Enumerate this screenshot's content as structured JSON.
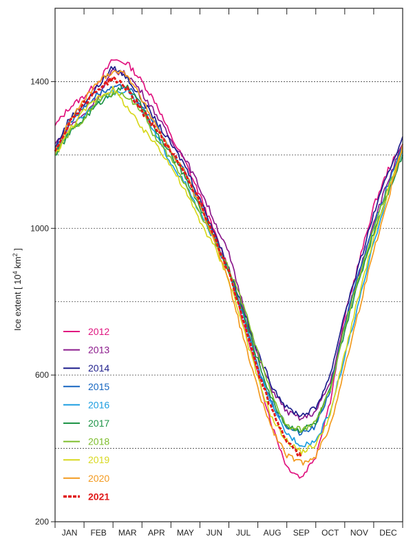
{
  "chart_data": {
    "type": "line",
    "title": "",
    "xlabel": "",
    "ylabel": "Ice extent [ 10",
    "ylabel_sup1": "4",
    "ylabel_mid": " km",
    "ylabel_sup2": "2",
    "ylabel_end": " ]",
    "ylim": [
      200,
      1600
    ],
    "yticks": [
      200,
      600,
      1000,
      1400
    ],
    "grid_lines": [
      400,
      800,
      1200,
      1400,
      1000,
      600
    ],
    "months": [
      "JAN",
      "FEB",
      "MAR",
      "APR",
      "MAY",
      "JUN",
      "JUL",
      "AUG",
      "SEP",
      "OCT",
      "NOV",
      "DEC"
    ],
    "legend_position": "bottom-left",
    "series": [
      {
        "name": "2012",
        "color": "#e0137f",
        "style": "solid",
        "bold": false,
        "values": [
          [
            0,
            1280
          ],
          [
            0.5,
            1330
          ],
          [
            1,
            1360
          ],
          [
            1.5,
            1400
          ],
          [
            2,
            1460
          ],
          [
            2.5,
            1450
          ],
          [
            3,
            1400
          ],
          [
            3.5,
            1340
          ],
          [
            4,
            1250
          ],
          [
            4.5,
            1180
          ],
          [
            5,
            1090
          ],
          [
            5.5,
            990
          ],
          [
            6,
            890
          ],
          [
            6.5,
            740
          ],
          [
            7,
            600
          ],
          [
            7.5,
            460
          ],
          [
            8,
            350
          ],
          [
            8.5,
            320
          ],
          [
            9,
            380
          ],
          [
            9.5,
            530
          ],
          [
            10,
            760
          ],
          [
            10.5,
            910
          ],
          [
            11,
            1060
          ],
          [
            11.5,
            1160
          ],
          [
            12,
            1230
          ]
        ]
      },
      {
        "name": "2013",
        "color": "#8b1a8c",
        "style": "solid",
        "bold": false,
        "values": [
          [
            0,
            1230
          ],
          [
            0.5,
            1280
          ],
          [
            1,
            1310
          ],
          [
            1.5,
            1360
          ],
          [
            2,
            1430
          ],
          [
            2.5,
            1420
          ],
          [
            3,
            1370
          ],
          [
            3.5,
            1310
          ],
          [
            4,
            1240
          ],
          [
            4.5,
            1190
          ],
          [
            5,
            1110
          ],
          [
            5.5,
            1020
          ],
          [
            6,
            930
          ],
          [
            6.5,
            790
          ],
          [
            7,
            650
          ],
          [
            7.5,
            560
          ],
          [
            8,
            500
          ],
          [
            8.5,
            480
          ],
          [
            9,
            500
          ],
          [
            9.5,
            580
          ],
          [
            10,
            740
          ],
          [
            10.5,
            880
          ],
          [
            11,
            1020
          ],
          [
            11.5,
            1130
          ],
          [
            12,
            1230
          ]
        ]
      },
      {
        "name": "2014",
        "color": "#1f1f8c",
        "style": "solid",
        "bold": false,
        "values": [
          [
            0,
            1220
          ],
          [
            0.5,
            1300
          ],
          [
            1,
            1340
          ],
          [
            1.5,
            1390
          ],
          [
            2,
            1440
          ],
          [
            2.5,
            1410
          ],
          [
            3,
            1350
          ],
          [
            3.5,
            1290
          ],
          [
            4,
            1230
          ],
          [
            4.5,
            1170
          ],
          [
            5,
            1080
          ],
          [
            5.5,
            990
          ],
          [
            6,
            890
          ],
          [
            6.5,
            780
          ],
          [
            7,
            660
          ],
          [
            7.5,
            570
          ],
          [
            8,
            510
          ],
          [
            8.5,
            490
          ],
          [
            9,
            510
          ],
          [
            9.5,
            600
          ],
          [
            10,
            770
          ],
          [
            10.5,
            900
          ],
          [
            11,
            1040
          ],
          [
            11.5,
            1150
          ],
          [
            12,
            1250
          ]
        ]
      },
      {
        "name": "2015",
        "color": "#1565c0",
        "style": "solid",
        "bold": false,
        "values": [
          [
            0,
            1210
          ],
          [
            0.5,
            1290
          ],
          [
            1,
            1330
          ],
          [
            1.5,
            1370
          ],
          [
            2,
            1380
          ],
          [
            2.5,
            1390
          ],
          [
            3,
            1330
          ],
          [
            3.5,
            1280
          ],
          [
            4,
            1210
          ],
          [
            4.5,
            1150
          ],
          [
            5,
            1070
          ],
          [
            5.5,
            980
          ],
          [
            6,
            880
          ],
          [
            6.5,
            760
          ],
          [
            7,
            620
          ],
          [
            7.5,
            520
          ],
          [
            8,
            460
          ],
          [
            8.5,
            440
          ],
          [
            9,
            460
          ],
          [
            9.5,
            560
          ],
          [
            10,
            740
          ],
          [
            10.5,
            880
          ],
          [
            11,
            1010
          ],
          [
            11.5,
            1120
          ],
          [
            12,
            1220
          ]
        ]
      },
      {
        "name": "2016",
        "color": "#1b9de0",
        "style": "solid",
        "bold": false,
        "values": [
          [
            0,
            1200
          ],
          [
            0.5,
            1270
          ],
          [
            1,
            1310
          ],
          [
            1.5,
            1350
          ],
          [
            2,
            1370
          ],
          [
            2.5,
            1380
          ],
          [
            3,
            1320
          ],
          [
            3.5,
            1250
          ],
          [
            4,
            1180
          ],
          [
            4.5,
            1120
          ],
          [
            5,
            1040
          ],
          [
            5.5,
            970
          ],
          [
            6,
            880
          ],
          [
            6.5,
            760
          ],
          [
            7,
            620
          ],
          [
            7.5,
            510
          ],
          [
            8,
            440
          ],
          [
            8.5,
            410
          ],
          [
            9,
            420
          ],
          [
            9.5,
            500
          ],
          [
            10,
            650
          ],
          [
            10.5,
            800
          ],
          [
            11,
            960
          ],
          [
            11.5,
            1100
          ],
          [
            12,
            1210
          ]
        ]
      },
      {
        "name": "2017",
        "color": "#1e9447",
        "style": "solid",
        "bold": false,
        "values": [
          [
            0,
            1200
          ],
          [
            0.5,
            1260
          ],
          [
            1,
            1300
          ],
          [
            1.5,
            1340
          ],
          [
            2,
            1370
          ],
          [
            2.5,
            1390
          ],
          [
            3,
            1330
          ],
          [
            3.5,
            1260
          ],
          [
            4,
            1200
          ],
          [
            4.5,
            1140
          ],
          [
            5,
            1060
          ],
          [
            5.5,
            970
          ],
          [
            6,
            880
          ],
          [
            6.5,
            770
          ],
          [
            7,
            640
          ],
          [
            7.5,
            530
          ],
          [
            8,
            460
          ],
          [
            8.5,
            450
          ],
          [
            9,
            470
          ],
          [
            9.5,
            560
          ],
          [
            10,
            720
          ],
          [
            10.5,
            860
          ],
          [
            11,
            990
          ],
          [
            11.5,
            1100
          ],
          [
            12,
            1200
          ]
        ]
      },
      {
        "name": "2018",
        "color": "#7dbd2b",
        "style": "solid",
        "bold": false,
        "values": [
          [
            0,
            1200
          ],
          [
            0.5,
            1260
          ],
          [
            1,
            1300
          ],
          [
            1.5,
            1350
          ],
          [
            2,
            1370
          ],
          [
            2.5,
            1360
          ],
          [
            3,
            1320
          ],
          [
            3.5,
            1240
          ],
          [
            4,
            1190
          ],
          [
            4.5,
            1120
          ],
          [
            5,
            1040
          ],
          [
            5.5,
            970
          ],
          [
            6,
            890
          ],
          [
            6.5,
            790
          ],
          [
            7,
            660
          ],
          [
            7.5,
            540
          ],
          [
            8,
            460
          ],
          [
            8.5,
            450
          ],
          [
            9,
            470
          ],
          [
            9.5,
            560
          ],
          [
            10,
            730
          ],
          [
            10.5,
            870
          ],
          [
            11,
            1000
          ],
          [
            11.5,
            1110
          ],
          [
            12,
            1210
          ]
        ]
      },
      {
        "name": "2019",
        "color": "#d8d81e",
        "style": "solid",
        "bold": false,
        "values": [
          [
            0,
            1200
          ],
          [
            0.5,
            1270
          ],
          [
            1,
            1320
          ],
          [
            1.5,
            1360
          ],
          [
            2,
            1380
          ],
          [
            2.5,
            1330
          ],
          [
            3,
            1270
          ],
          [
            3.5,
            1230
          ],
          [
            4,
            1170
          ],
          [
            4.5,
            1100
          ],
          [
            5,
            1020
          ],
          [
            5.5,
            950
          ],
          [
            6,
            860
          ],
          [
            6.5,
            730
          ],
          [
            7,
            590
          ],
          [
            7.5,
            480
          ],
          [
            8,
            420
          ],
          [
            8.5,
            390
          ],
          [
            9,
            410
          ],
          [
            9.5,
            490
          ],
          [
            10,
            660
          ],
          [
            10.5,
            820
          ],
          [
            11,
            970
          ],
          [
            11.5,
            1100
          ],
          [
            12,
            1220
          ]
        ]
      },
      {
        "name": "2020",
        "color": "#f39a1f",
        "style": "solid",
        "bold": false,
        "values": [
          [
            0,
            1210
          ],
          [
            0.5,
            1290
          ],
          [
            1,
            1350
          ],
          [
            1.5,
            1400
          ],
          [
            2,
            1430
          ],
          [
            2.5,
            1420
          ],
          [
            3,
            1350
          ],
          [
            3.5,
            1280
          ],
          [
            4,
            1210
          ],
          [
            4.5,
            1150
          ],
          [
            5,
            1060
          ],
          [
            5.5,
            970
          ],
          [
            6,
            850
          ],
          [
            6.5,
            700
          ],
          [
            7,
            560
          ],
          [
            7.5,
            450
          ],
          [
            8,
            380
          ],
          [
            8.5,
            360
          ],
          [
            9,
            380
          ],
          [
            9.5,
            460
          ],
          [
            10,
            620
          ],
          [
            10.5,
            780
          ],
          [
            11,
            940
          ],
          [
            11.5,
            1080
          ],
          [
            12,
            1230
          ]
        ]
      },
      {
        "name": "2021",
        "color": "#e01a1a",
        "style": "dashed",
        "bold": true,
        "values": [
          [
            0,
            1210
          ],
          [
            0.5,
            1290
          ],
          [
            1,
            1340
          ],
          [
            1.5,
            1380
          ],
          [
            2,
            1410
          ],
          [
            2.5,
            1380
          ],
          [
            3,
            1320
          ],
          [
            3.5,
            1270
          ],
          [
            4,
            1210
          ],
          [
            4.5,
            1150
          ],
          [
            5,
            1070
          ],
          [
            5.5,
            980
          ],
          [
            6,
            880
          ],
          [
            6.5,
            750
          ],
          [
            7,
            610
          ],
          [
            7.5,
            500
          ],
          [
            8,
            420
          ],
          [
            8.5,
            375
          ]
        ]
      }
    ]
  }
}
